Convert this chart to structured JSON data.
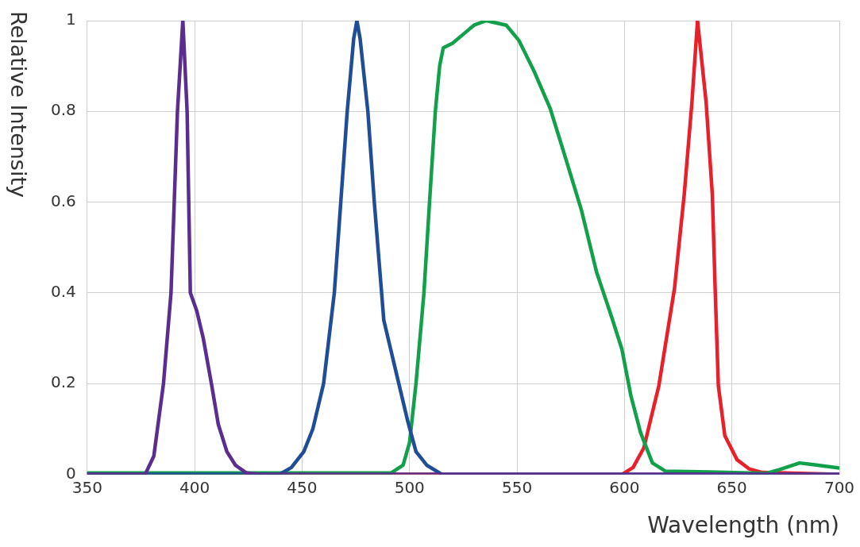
{
  "chart_data": {
    "type": "line",
    "xlabel": "Wavelength (nm)",
    "ylabel": "Relative Intensity",
    "xlim": [
      350,
      700
    ],
    "ylim": [
      0,
      1
    ],
    "xticks": [
      350,
      400,
      450,
      500,
      550,
      600,
      650,
      700
    ],
    "yticks": [
      0,
      0.2,
      0.4,
      0.6,
      0.8,
      1
    ],
    "grid": true,
    "legend": false,
    "marker": "none",
    "line_style": "solid",
    "series": [
      {
        "color": "#5b2d8e",
        "x": [
          350,
          377,
          381,
          385.5,
          389,
          392,
          394.5,
          396.5,
          398,
          401,
          404,
          407.8,
          411,
          415,
          419,
          424,
          430,
          700
        ],
        "values": [
          0,
          0,
          0.04,
          0.2,
          0.4,
          0.8,
          1,
          0.8,
          0.4,
          0.36,
          0.3,
          0.2,
          0.11,
          0.05,
          0.02,
          0.003,
          0,
          0
        ]
      },
      {
        "color": "#1f4e96",
        "x": [
          350,
          439.5,
          445,
          450.8,
          455,
          460,
          465,
          468,
          471,
          474,
          475.5,
          477,
          480.6,
          483.6,
          487,
          488,
          491,
          495,
          499,
          503,
          508,
          515,
          700
        ],
        "values": [
          0,
          0,
          0.015,
          0.05,
          0.1,
          0.2,
          0.4,
          0.6,
          0.8,
          0.96,
          1,
          0.96,
          0.8,
          0.6,
          0.4,
          0.34,
          0.28,
          0.2,
          0.12,
          0.05,
          0.02,
          0,
          0
        ]
      },
      {
        "color": "#12a14a",
        "x": [
          350,
          491.5,
          497,
          500,
          503,
          506.7,
          509.3,
          512,
          514,
          515.7,
          520,
          525,
          530,
          535.7,
          545,
          550.8,
          558,
          565.4,
          572.6,
          580,
          587,
          594.3,
          598.8,
          603,
          607.5,
          613,
          619,
          640,
          666,
          672,
          681.5,
          690,
          700
        ],
        "values": [
          0.003,
          0.003,
          0.02,
          0.07,
          0.2,
          0.4,
          0.6,
          0.8,
          0.9,
          0.94,
          0.95,
          0.97,
          0.99,
          1,
          0.99,
          0.957,
          0.888,
          0.807,
          0.697,
          0.582,
          0.446,
          0.343,
          0.276,
          0.173,
          0.092,
          0.025,
          0.007,
          0.005,
          0.002,
          0.01,
          0.025,
          0.02,
          0.014
        ]
      },
      {
        "color": "#e8202a",
        "x": [
          350,
          599,
          604,
          609,
          616,
          623.3,
          627.8,
          631.4,
          634,
          638,
          640.9,
          642.2,
          643.7,
          646.7,
          652.4,
          658,
          664,
          700
        ],
        "values": [
          0,
          0,
          0.015,
          0.058,
          0.195,
          0.41,
          0.616,
          0.82,
          1,
          0.82,
          0.616,
          0.41,
          0.195,
          0.085,
          0.032,
          0.012,
          0.004,
          0
        ]
      }
    ]
  }
}
